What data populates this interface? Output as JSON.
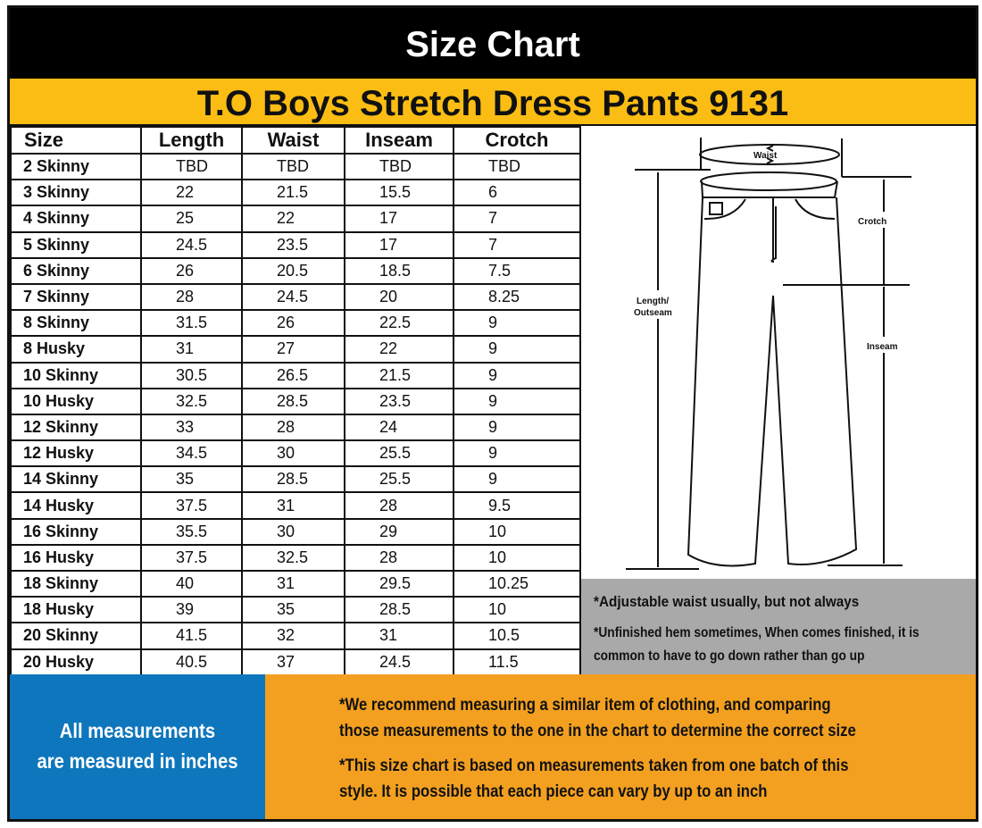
{
  "header": {
    "title": "Size Chart",
    "product": "T.O Boys Stretch Dress Pants 9131"
  },
  "table": {
    "columns": [
      "Size",
      "Length",
      "Waist",
      "Inseam",
      "Crotch"
    ],
    "rows": [
      [
        "2 Skinny",
        "TBD",
        "TBD",
        "TBD",
        "TBD"
      ],
      [
        "3 Skinny",
        "22",
        "21.5",
        "15.5",
        "6"
      ],
      [
        "4 Skinny",
        "25",
        "22",
        "17",
        "7"
      ],
      [
        "5 Skinny",
        "24.5",
        "23.5",
        "17",
        "7"
      ],
      [
        "6 Skinny",
        "26",
        "20.5",
        "18.5",
        "7.5"
      ],
      [
        "7 Skinny",
        "28",
        "24.5",
        "20",
        "8.25"
      ],
      [
        "8 Skinny",
        "31.5",
        "26",
        "22.5",
        "9"
      ],
      [
        "8 Husky",
        "31",
        "27",
        "22",
        "9"
      ],
      [
        "10 Skinny",
        "30.5",
        "26.5",
        "21.5",
        "9"
      ],
      [
        "10 Husky",
        "32.5",
        "28.5",
        "23.5",
        "9"
      ],
      [
        "12 Skinny",
        "33",
        "28",
        "24",
        "9"
      ],
      [
        "12 Husky",
        "34.5",
        "30",
        "25.5",
        "9"
      ],
      [
        "14 Skinny",
        "35",
        "28.5",
        "25.5",
        "9"
      ],
      [
        "14 Husky",
        "37.5",
        "31",
        "28",
        "9.5"
      ],
      [
        "16 Skinny",
        "35.5",
        "30",
        "29",
        "10"
      ],
      [
        "16 Husky",
        "37.5",
        "32.5",
        "28",
        "10"
      ],
      [
        "18 Skinny",
        "40",
        "31",
        "29.5",
        "10.25"
      ],
      [
        "18 Husky",
        "39",
        "35",
        "28.5",
        "10"
      ],
      [
        "20 Skinny",
        "41.5",
        "32",
        "31",
        "10.5"
      ],
      [
        "20 Husky",
        "40.5",
        "37",
        "24.5",
        "11.5"
      ]
    ]
  },
  "diagram": {
    "waist": "Waist",
    "crotch": "Crotch",
    "length1": "Length/",
    "length2": "Outseam",
    "inseam": "Inseam"
  },
  "notes": {
    "n1": "*Adjustable waist usually, but not always",
    "n2": "*Unfinished hem sometimes, When comes finished, it is",
    "n3": "common to have to go down rather than go up"
  },
  "units": {
    "l1": "All  measurements",
    "l2": "are measured  in inches"
  },
  "advice": {
    "a1": "*We recommend measuring a similar item of clothing, and comparing",
    "a2": "those measurements to the one in the chart to determine the correct size",
    "b1": "*This size chart is based on measurements taken from one batch of this",
    "b2": " style. It is possible that each piece can vary by up to an inch"
  },
  "colors": {
    "header": "#000000",
    "title_band": "#fbbd13",
    "notes": "#a9a9a9",
    "units": "#0e76bc",
    "advice": "#f3a020"
  }
}
